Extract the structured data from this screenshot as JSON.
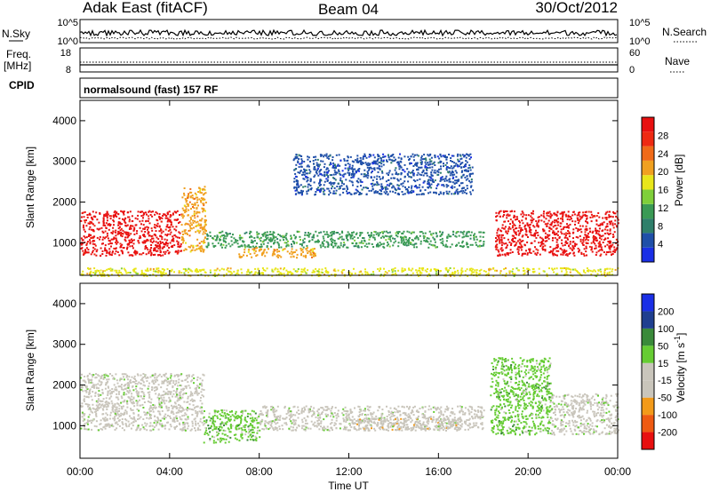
{
  "header": {
    "radar": "Adak East (fitACF)",
    "beam": "Beam 04",
    "date": "30/Oct/2012"
  },
  "summary": {
    "nsky_label": "N.Sky",
    "nsearch_label": "N.Search",
    "nsky_ticks": [
      "10^5",
      "10^0"
    ],
    "nsearch_ticks": [
      "10^5",
      "10^0"
    ],
    "freq_label": "Freq.",
    "freq_unit": "[MHz]",
    "freq_ticks": [
      "18",
      "8"
    ],
    "nave_label": "Nave",
    "nave_ticks": [
      "60",
      "0"
    ],
    "cpid_label": "CPID",
    "cpid_value": "normalsound (fast) 157 RF"
  },
  "colors": {
    "power_scale": [
      "#1a2fe6",
      "#1f4fa8",
      "#2f7f6a",
      "#3a9a55",
      "#7fcf3a",
      "#e8e61a",
      "#f0a020",
      "#f06a18",
      "#ee2a12",
      "#e81010"
    ],
    "velocity_scale": [
      "#e81010",
      "#ee5a12",
      "#f29a1a",
      "#c9c5bb",
      "#c9c5bb",
      "#66cc33",
      "#3a8a3a",
      "#1f3f8f",
      "#1a2fe6"
    ]
  },
  "chart_data": [
    {
      "type": "heatmap",
      "panel": "power",
      "ylabel": "Slant Range [km]",
      "y_ticks": [
        "1000",
        "2000",
        "3000",
        "4000"
      ],
      "ylim": [
        200,
        4500
      ],
      "colorbar_label": "Power [dB]",
      "colorbar_ticks": [
        "4",
        "8",
        "12",
        "16",
        "20",
        "24",
        "28"
      ],
      "colorbar_range": [
        0,
        32
      ],
      "regions": [
        {
          "x": [
            0,
            4.5
          ],
          "y": [
            700,
            1800
          ],
          "value": 29
        },
        {
          "x": [
            4.5,
            5.6
          ],
          "y": [
            800,
            2400
          ],
          "value": 22
        },
        {
          "x": [
            5.6,
            18.0
          ],
          "y": [
            900,
            1300
          ],
          "value": 10
        },
        {
          "x": [
            7.0,
            10.5
          ],
          "y": [
            650,
            900
          ],
          "value": 22
        },
        {
          "x": [
            9.5,
            17.5
          ],
          "y": [
            2200,
            3200
          ],
          "value": 6
        },
        {
          "x": [
            18.5,
            24
          ],
          "y": [
            700,
            1800
          ],
          "value": 29
        },
        {
          "x": [
            0,
            24
          ],
          "y": [
            200,
            400
          ],
          "value": 16
        }
      ]
    },
    {
      "type": "heatmap",
      "panel": "velocity",
      "ylabel": "Slant Range [km]",
      "y_ticks": [
        "1000",
        "2000",
        "3000",
        "4000"
      ],
      "ylim": [
        200,
        4500
      ],
      "colorbar_label": "Velocity [m s^-1]",
      "colorbar_ticks": [
        "200",
        "100",
        "50",
        "15",
        "-15",
        "-50",
        "-100",
        "-200"
      ],
      "colorbar_range": [
        -250,
        250
      ],
      "regions": [
        {
          "x": [
            0,
            5.5
          ],
          "y": [
            900,
            2300
          ],
          "value": 0
        },
        {
          "x": [
            5.5,
            8.0
          ],
          "y": [
            600,
            1400
          ],
          "value": 60
        },
        {
          "x": [
            8.0,
            18.0
          ],
          "y": [
            900,
            1500
          ],
          "value": 0
        },
        {
          "x": [
            12.0,
            17.0
          ],
          "y": [
            900,
            1200
          ],
          "value": -40
        },
        {
          "x": [
            18.3,
            21.0
          ],
          "y": [
            800,
            2700
          ],
          "value": 40
        },
        {
          "x": [
            21.0,
            24
          ],
          "y": [
            800,
            1800
          ],
          "value": 0
        }
      ]
    }
  ],
  "xaxis": {
    "label": "Time UT",
    "ticks": [
      "00:00",
      "04:00",
      "08:00",
      "12:00",
      "16:00",
      "20:00",
      "00:00"
    ],
    "xlim": [
      0,
      24
    ]
  }
}
